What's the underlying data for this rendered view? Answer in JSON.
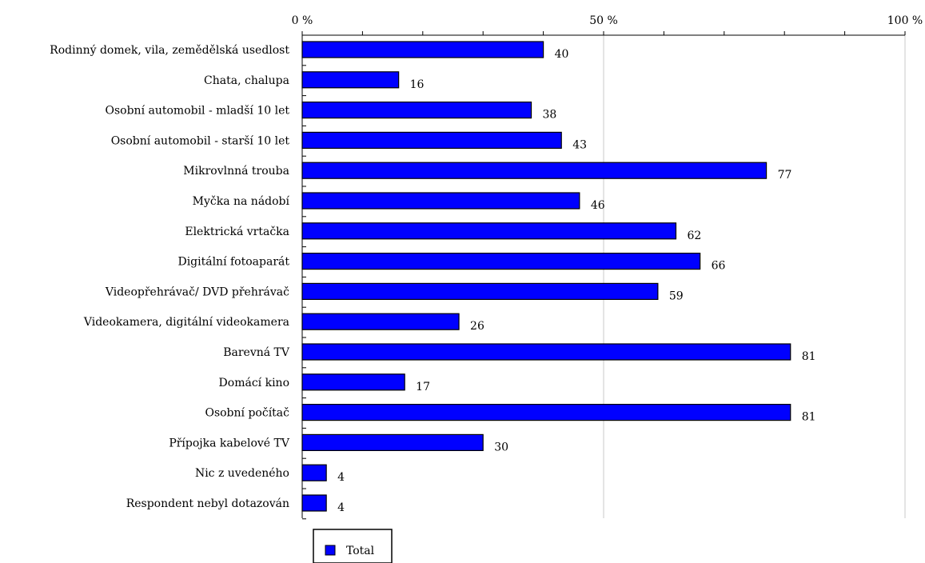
{
  "chart_data": {
    "type": "bar",
    "orientation": "horizontal",
    "categories": [
      "Rodinný domek, vila, zemědělská usedlost",
      "Chata, chalupa",
      "Osobní automobil - mladší 10 let",
      "Osobní automobil - starší 10 let",
      "Mikrovlnná trouba",
      "Myčka na nádobí",
      "Elektrická vrtačka",
      "Digitální fotoaparát",
      "Videopřehrávač/ DVD přehrávač",
      "Videokamera, digitální videokamera",
      "Barevná TV",
      "Domácí kino",
      "Osobní počítač",
      "Přípojka kabelové TV",
      "Nic z uvedeného",
      "Respondent nebyl dotazován"
    ],
    "series": [
      {
        "name": "Total",
        "color": "#0000ff",
        "values": [
          40,
          16,
          38,
          43,
          77,
          46,
          62,
          66,
          59,
          26,
          81,
          17,
          81,
          30,
          4,
          4
        ],
        "labels": [
          "40",
          "16",
          "38",
          "43",
          "77",
          "46",
          "62",
          "66",
          "59",
          "26",
          "81",
          "17",
          "81",
          "30",
          "4",
          "4"
        ]
      }
    ],
    "x_tick_labels": [
      "0 %",
      "50 %",
      "100 %"
    ],
    "x_tick_values": [
      0,
      50,
      100
    ],
    "xlim": [
      0,
      100
    ],
    "minor_tick_step": 10,
    "grid": "vertical at labeled ticks",
    "legend_position": "bottom-left",
    "title": "",
    "xlabel": "",
    "ylabel": ""
  }
}
